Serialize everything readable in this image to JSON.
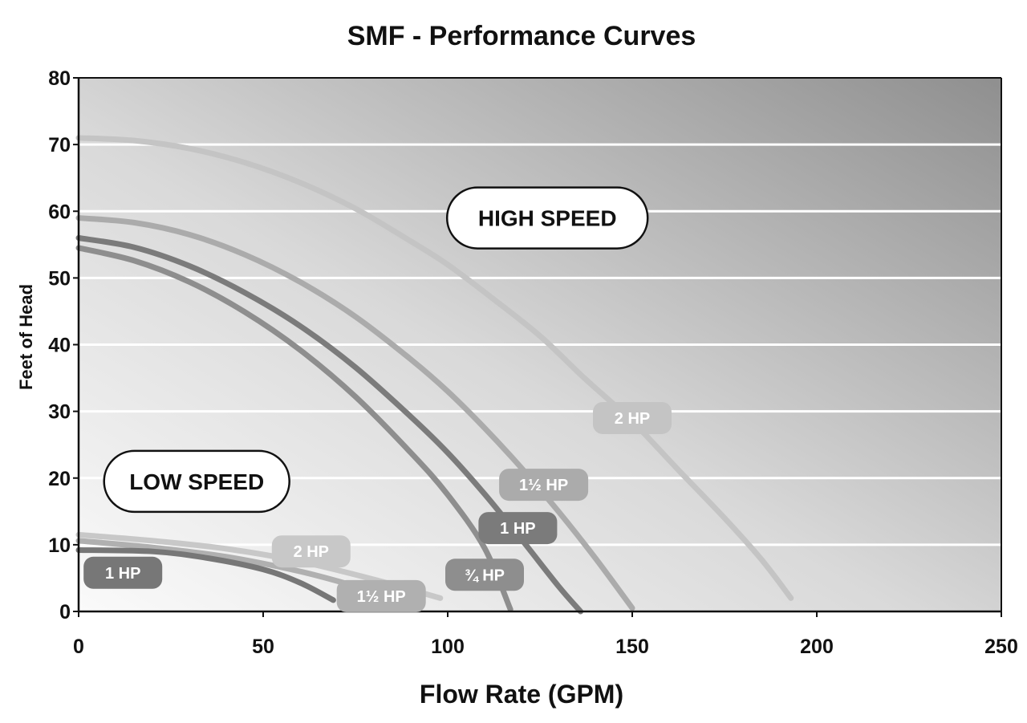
{
  "chart_data": {
    "type": "line",
    "title": "SMF - Performance Curves",
    "xlabel": "Flow Rate (GPM)",
    "ylabel": "Feet of Head",
    "xlim": [
      0,
      250
    ],
    "ylim": [
      0,
      80
    ],
    "xticks": [
      0,
      50,
      100,
      150,
      200,
      250
    ],
    "yticks": [
      0,
      10,
      20,
      30,
      40,
      50,
      60,
      70,
      80
    ],
    "grid": "horizontal",
    "annotations": [
      {
        "text": "HIGH SPEED",
        "x": 127,
        "y": 59
      },
      {
        "text": "LOW SPEED",
        "x": 32,
        "y": 19.5
      }
    ],
    "series": [
      {
        "name": "2 HP",
        "group": "High Speed",
        "color": "#c4c4c4",
        "label_at": [
          150,
          29
        ],
        "points": [
          [
            0,
            71
          ],
          [
            15,
            70.6
          ],
          [
            30,
            69.4
          ],
          [
            45,
            67.3
          ],
          [
            60,
            64.3
          ],
          [
            75,
            60.4
          ],
          [
            90,
            55.5
          ],
          [
            100,
            52
          ],
          [
            112,
            47
          ],
          [
            125,
            41.3
          ],
          [
            137,
            35
          ],
          [
            150,
            28.5
          ],
          [
            162,
            21.5
          ],
          [
            175,
            14
          ],
          [
            185,
            7.8
          ],
          [
            193,
            2
          ]
        ]
      },
      {
        "name": "1½ HP",
        "group": "High Speed",
        "color": "#ababab",
        "label_at": [
          126,
          19
        ],
        "points": [
          [
            0,
            59
          ],
          [
            15,
            58.3
          ],
          [
            30,
            56.5
          ],
          [
            45,
            53.5
          ],
          [
            60,
            49.4
          ],
          [
            75,
            44.2
          ],
          [
            90,
            37.8
          ],
          [
            100,
            33
          ],
          [
            110,
            27.5
          ],
          [
            120,
            21.5
          ],
          [
            130,
            15
          ],
          [
            140,
            8
          ],
          [
            150,
            0.5
          ]
        ]
      },
      {
        "name": "1 HP",
        "group": "High Speed",
        "color": "#7b7b7b",
        "label_at": [
          119,
          12.5
        ],
        "points": [
          [
            0,
            56
          ],
          [
            15,
            54.6
          ],
          [
            30,
            51.8
          ],
          [
            45,
            47.8
          ],
          [
            60,
            42.8
          ],
          [
            75,
            36.6
          ],
          [
            90,
            29.2
          ],
          [
            100,
            23.8
          ],
          [
            110,
            17.6
          ],
          [
            120,
            10.8
          ],
          [
            130,
            3.8
          ],
          [
            136,
            0
          ]
        ]
      },
      {
        "name": "¾ HP",
        "group": "High Speed",
        "color": "#8e8e8e",
        "label_at": [
          110,
          5.5
        ],
        "points": [
          [
            0,
            54.5
          ],
          [
            15,
            52.6
          ],
          [
            30,
            49.4
          ],
          [
            45,
            44.9
          ],
          [
            60,
            39.2
          ],
          [
            75,
            32.2
          ],
          [
            90,
            23.8
          ],
          [
            100,
            17.5
          ],
          [
            110,
            9.5
          ],
          [
            117,
            0.3
          ]
        ]
      },
      {
        "name": "2 HP",
        "group": "Low Speed",
        "color": "#c8c8c8",
        "label_at": [
          63,
          9
        ],
        "points": [
          [
            0,
            11.5
          ],
          [
            20,
            10.6
          ],
          [
            40,
            9.4
          ],
          [
            60,
            7.5
          ],
          [
            80,
            4.8
          ],
          [
            98,
            2
          ]
        ]
      },
      {
        "name": "1½ HP",
        "group": "Low Speed",
        "color": "#b0b0b0",
        "label_at": [
          82,
          2.3
        ],
        "points": [
          [
            0,
            10.6
          ],
          [
            20,
            9.6
          ],
          [
            40,
            8.2
          ],
          [
            60,
            6
          ],
          [
            75,
            3.8
          ]
        ]
      },
      {
        "name": "1 HP",
        "group": "Low Speed",
        "color": "#777777",
        "label_at": [
          12,
          5.8
        ],
        "points": [
          [
            0,
            9.2
          ],
          [
            20,
            9
          ],
          [
            35,
            8
          ],
          [
            50,
            6.3
          ],
          [
            60,
            4.3
          ],
          [
            69,
            1.7
          ]
        ]
      }
    ]
  }
}
